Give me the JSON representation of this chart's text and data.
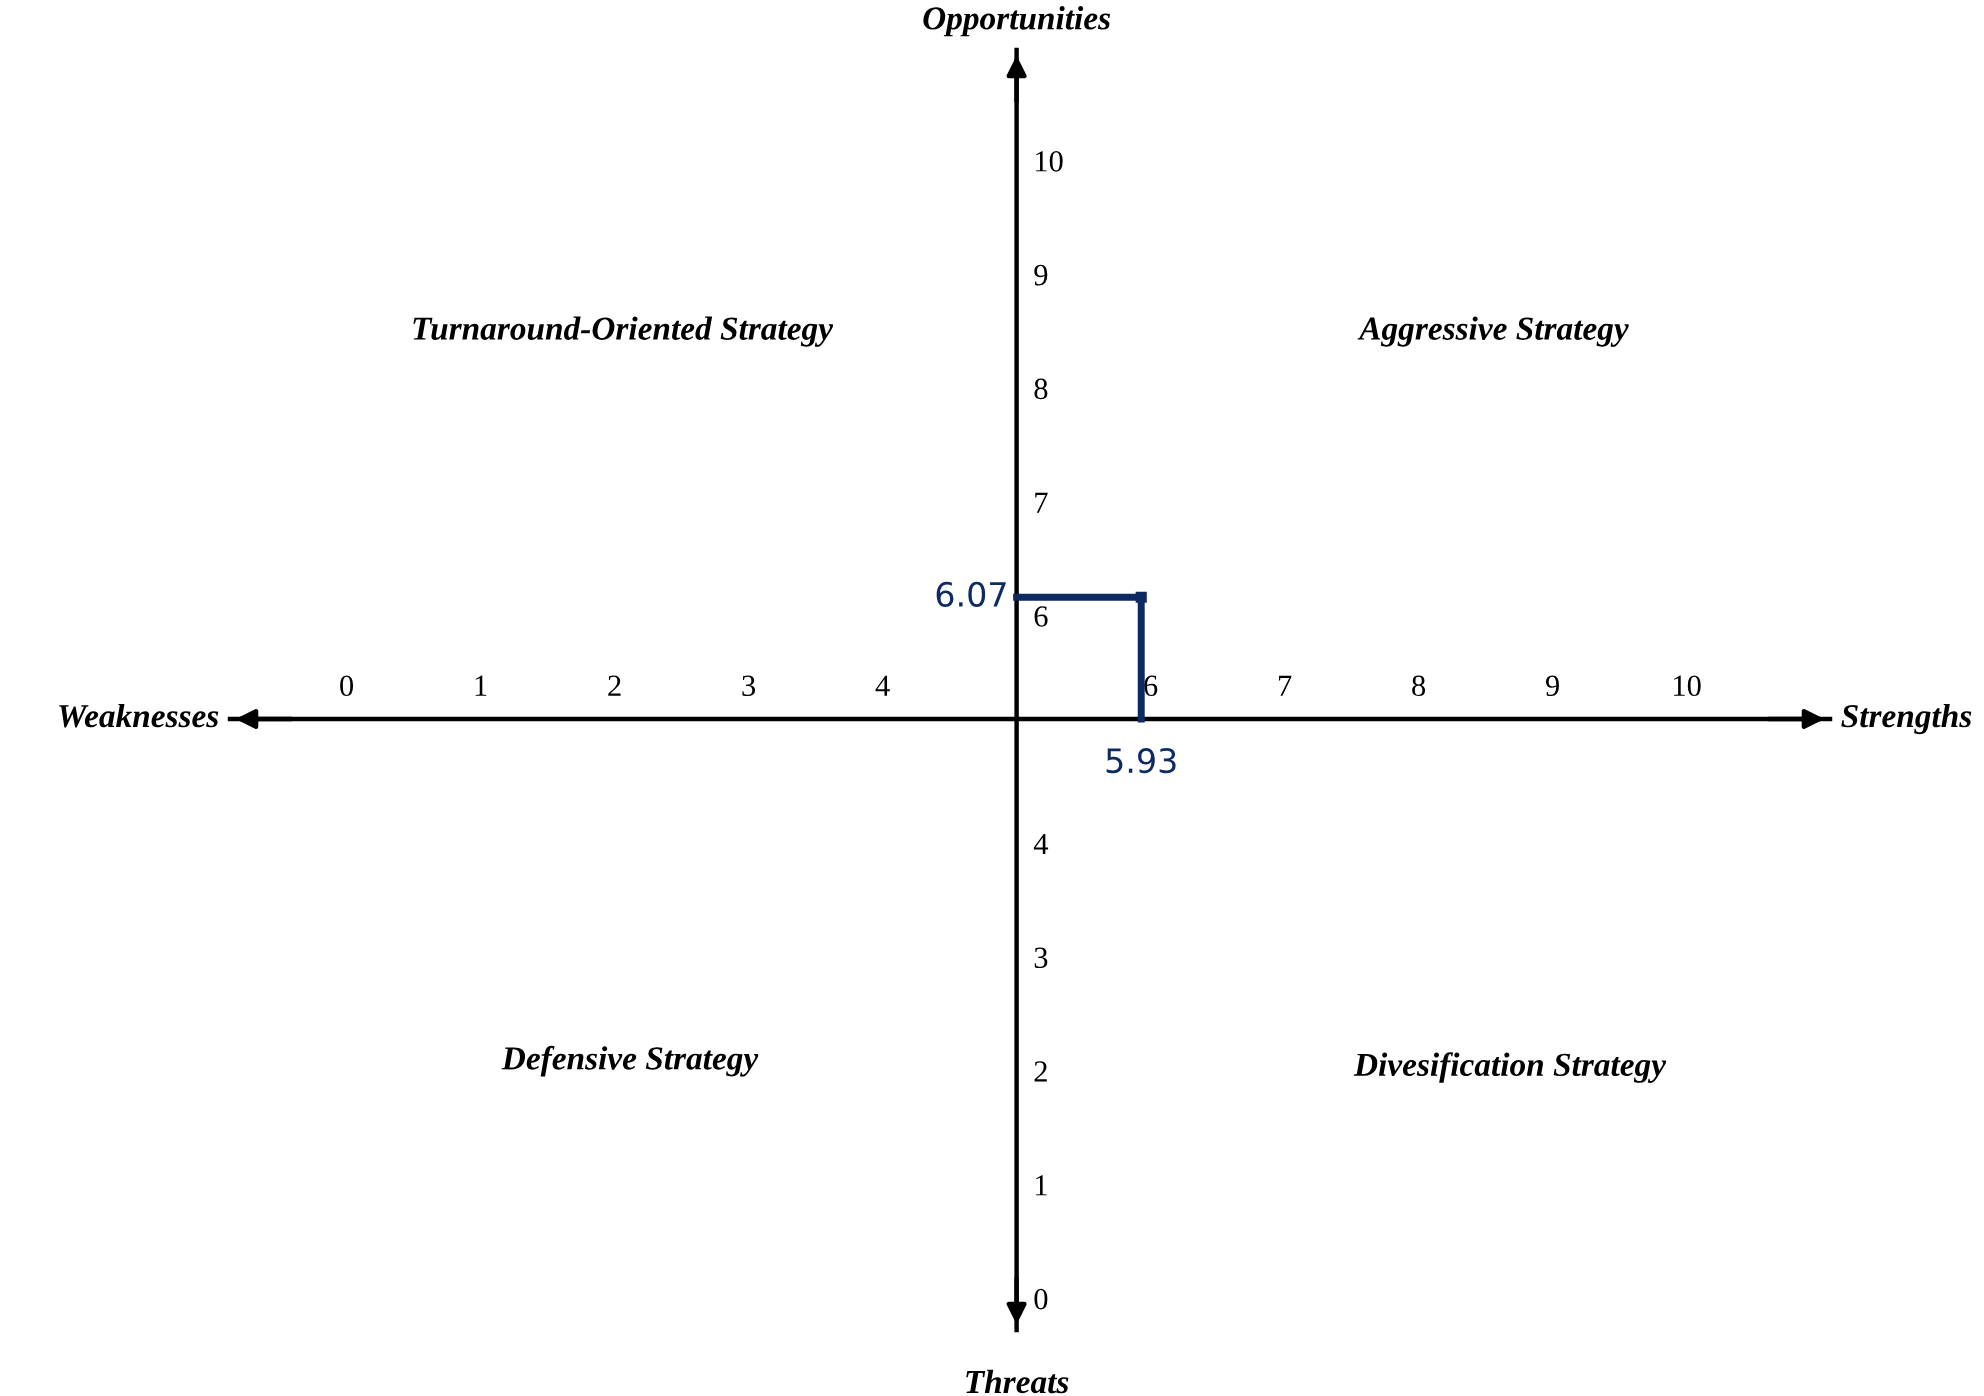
{
  "chart_data": {
    "type": "line",
    "xlabel": "Strengths",
    "ylabel": "Opportunities",
    "series": [
      {
        "color": "#0d2a63",
        "x": [
          5.93
        ],
        "values": [
          6.07
        ]
      }
    ],
    "xlim": [
      -0.87,
      11.07
    ],
    "ylim": [
      -0.37,
      10.88
    ],
    "xticks": [
      0,
      1,
      2,
      3,
      4,
      6,
      7,
      8,
      9,
      10
    ],
    "yticks": [
      0,
      1,
      2,
      3,
      4,
      6,
      7,
      8,
      9,
      10
    ],
    "grid": false,
    "legend": false,
    "marker": "square",
    "line_style": "solid",
    "annotations": [
      "Weaknesses",
      "Threats",
      "Turnaround-Oriented Strategy",
      "Aggressive Strategy",
      "Defensive Strategy",
      "Divesification Strategy",
      "6.07",
      "5.93"
    ]
  }
}
